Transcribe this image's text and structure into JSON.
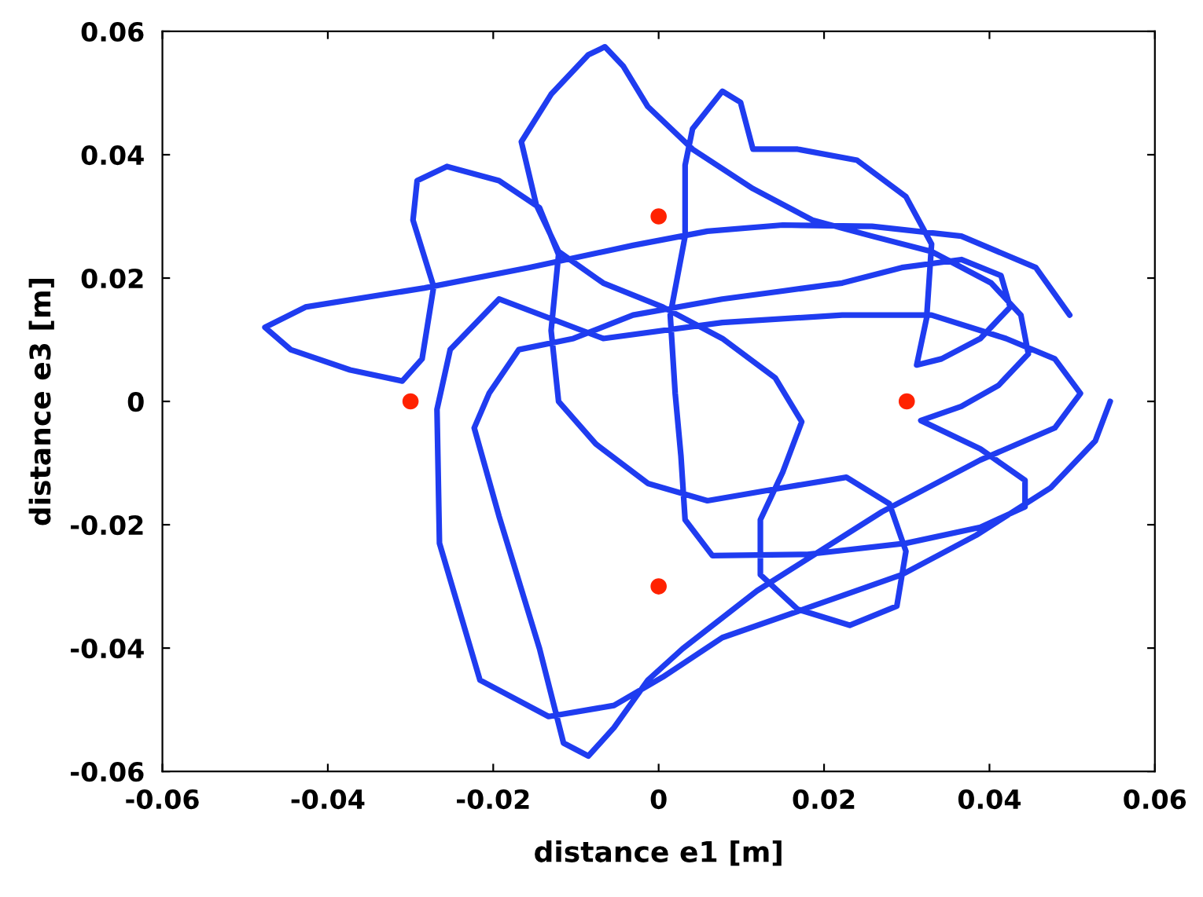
{
  "chart_data": {
    "type": "line",
    "xlabel": "distance e1 [m]",
    "ylabel": "distance e3 [m]",
    "xlim": [
      -0.06,
      0.06
    ],
    "ylim": [
      -0.06,
      0.06
    ],
    "xticks": [
      -0.06,
      -0.04,
      -0.02,
      0,
      0.02,
      0.04,
      0.06
    ],
    "yticks": [
      -0.06,
      -0.04,
      -0.02,
      0,
      0.02,
      0.04,
      0.06
    ],
    "grid": false,
    "series": [
      {
        "color": "#1f3cf0",
        "marker": "none",
        "line_style": "solid",
        "x": [
          0.0497,
          0.0456,
          0.0366,
          0.0258,
          0.015,
          0.0059,
          -0.0031,
          -0.0157,
          -0.0283,
          -0.0427,
          -0.0476,
          -0.0445,
          -0.0373,
          -0.031,
          -0.0286,
          -0.0272,
          -0.0297,
          -0.0292,
          -0.0256,
          -0.0193,
          -0.0144,
          -0.0121,
          -0.013,
          -0.0121,
          -0.0076,
          -0.0013,
          0.0059,
          0.015,
          0.0227,
          0.0279,
          0.0299,
          0.0288,
          0.0231,
          0.0168,
          0.0123,
          0.0123,
          0.015,
          0.0173,
          0.0141,
          0.0077,
          0.0005,
          -0.0067,
          -0.0121,
          -0.0148,
          -0.0166,
          -0.013,
          -0.0085,
          -0.0065,
          -0.0043,
          -0.0013,
          0.0041,
          0.0114,
          0.0186,
          0.0258,
          0.033,
          0.0402,
          0.0438,
          0.0447,
          0.0411,
          0.0366,
          0.0317,
          0.0389,
          0.0443,
          0.0443,
          0.0389,
          0.0299,
          0.018,
          0.0065,
          0.0032,
          0.0027,
          0.002,
          0.0014,
          0.0032,
          0.0032,
          0.0041,
          0.0077,
          0.0099,
          0.0114,
          0.0168,
          0.024,
          0.0299,
          0.033,
          0.0324,
          0.0312,
          0.0342,
          0.0389,
          0.0425,
          0.0414,
          0.0366,
          0.0294,
          0.0222,
          0.015,
          0.0077,
          -0.0031,
          -0.0103,
          -0.0169,
          -0.0205,
          -0.0223,
          -0.0193,
          -0.0144,
          -0.0115,
          -0.0085,
          -0.0054,
          -0.0013,
          0.0029,
          0.0119,
          0.027,
          0.0389,
          0.0479,
          0.051,
          0.0479,
          0.042,
          0.033,
          0.0222,
          0.0077,
          -0.0067,
          -0.0193,
          -0.0252,
          -0.0268,
          -0.0265,
          -0.0216,
          -0.0133,
          -0.0054,
          0.0005,
          0.0077,
          0.0186,
          0.0294,
          0.0384,
          0.0474,
          0.0528,
          0.0546
        ],
        "values": [
          0.014,
          0.0217,
          0.0268,
          0.0284,
          0.0286,
          0.0276,
          0.0253,
          0.0217,
          0.0184,
          0.0153,
          0.012,
          0.0084,
          0.0051,
          0.0033,
          0.0069,
          0.0186,
          0.0294,
          0.0358,
          0.0381,
          0.0358,
          0.0314,
          0.0238,
          0.0115,
          0,
          -0.0069,
          -0.0133,
          -0.0161,
          -0.014,
          -0.0123,
          -0.0166,
          -0.0243,
          -0.0332,
          -0.0363,
          -0.0337,
          -0.0281,
          -0.0192,
          -0.0115,
          -0.0033,
          0.0038,
          0.0102,
          0.0153,
          0.0192,
          0.0243,
          0.0319,
          0.0421,
          0.0498,
          0.0562,
          0.0575,
          0.0544,
          0.0478,
          0.0409,
          0.0345,
          0.0294,
          0.0268,
          0.0243,
          0.0192,
          0.014,
          0.0077,
          0.0026,
          -0.0008,
          -0.0031,
          -0.0077,
          -0.0128,
          -0.0171,
          -0.0204,
          -0.023,
          -0.0248,
          -0.025,
          -0.0192,
          -0.0089,
          0.0013,
          0.014,
          0.0268,
          0.0383,
          0.0442,
          0.0503,
          0.0485,
          0.0409,
          0.0409,
          0.0391,
          0.0332,
          0.0255,
          0.0135,
          0.0059,
          0.0069,
          0.0102,
          0.0153,
          0.0204,
          0.023,
          0.0217,
          0.0192,
          0.0179,
          0.0166,
          0.014,
          0.0102,
          0.0084,
          0.0013,
          -0.0043,
          -0.0186,
          -0.0401,
          -0.0554,
          -0.0575,
          -0.0529,
          -0.0452,
          -0.0401,
          -0.0307,
          -0.0179,
          -0.0095,
          -0.0043,
          0.0013,
          0.0069,
          0.0102,
          0.014,
          0.014,
          0.0128,
          0.0102,
          0.0166,
          0.0084,
          -0.0013,
          -0.023,
          -0.0452,
          -0.0511,
          -0.0493,
          -0.0447,
          -0.0383,
          -0.0332,
          -0.0281,
          -0.0217,
          -0.014,
          -0.0064,
          0
        ]
      },
      {
        "type": "scatter",
        "color": "#ff2200",
        "marker": "circle",
        "x": [
          -0.03,
          0,
          0.03,
          0
        ],
        "values": [
          0,
          0.03,
          0,
          -0.03
        ]
      }
    ]
  }
}
